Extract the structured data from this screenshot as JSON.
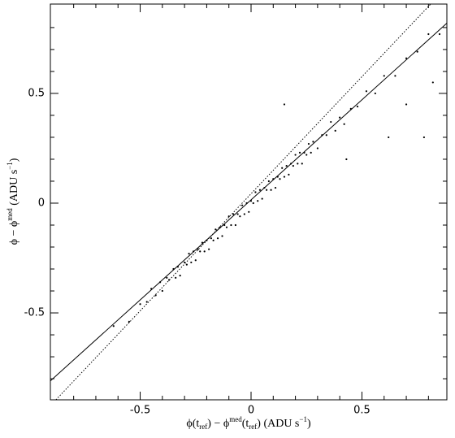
{
  "chart_data": {
    "type": "scatter",
    "xlim": [
      -0.905,
      0.883
    ],
    "ylim": [
      -0.896,
      0.907
    ],
    "xticks": [
      -0.5,
      0,
      0.5
    ],
    "yticks": [
      -0.5,
      0,
      0.5
    ],
    "x_minor_ticks": [
      -0.8,
      -0.7,
      -0.6,
      -0.4,
      -0.3,
      -0.2,
      -0.1,
      0.1,
      0.2,
      0.3,
      0.4,
      0.6,
      0.7,
      0.8
    ],
    "y_minor_ticks": [
      -0.8,
      -0.7,
      -0.6,
      -0.4,
      -0.3,
      -0.2,
      -0.1,
      0.1,
      0.2,
      0.3,
      0.4,
      0.6,
      0.7,
      0.8
    ],
    "xlabel": [
      "ϕ(t",
      "ref",
      ") − ϕ",
      "med",
      "(t",
      "ref",
      ") (ADU s",
      "−1",
      ")"
    ],
    "xlabel_shift": [
      "base",
      "sub",
      "base",
      "sup",
      "base",
      "sub",
      "base",
      "sup",
      "base"
    ],
    "ylabel": [
      "ϕ − ϕ",
      "med",
      " (ADU s",
      "−1",
      ")"
    ],
    "ylabel_shift": [
      "base",
      "sup",
      "base",
      "sup",
      "base"
    ],
    "color": "#000000",
    "points": {
      "x": [
        -0.62,
        -0.55,
        -0.5,
        -0.47,
        -0.45,
        -0.43,
        -0.41,
        -0.4,
        -0.38,
        -0.37,
        -0.35,
        -0.34,
        -0.33,
        -0.32,
        -0.3,
        -0.29,
        -0.28,
        -0.27,
        -0.26,
        -0.25,
        -0.24,
        -0.23,
        -0.22,
        -0.21,
        -0.2,
        -0.19,
        -0.18,
        -0.17,
        -0.16,
        -0.15,
        -0.14,
        -0.13,
        -0.12,
        -0.11,
        -0.1,
        -0.09,
        -0.08,
        -0.07,
        -0.06,
        -0.05,
        -0.04,
        -0.03,
        -0.02,
        -0.01,
        0,
        0.01,
        0.02,
        0.03,
        0.04,
        0.05,
        0.06,
        0.07,
        0.08,
        0.09,
        0.1,
        0.11,
        0.12,
        0.13,
        0.14,
        0.15,
        0.16,
        0.17,
        0.18,
        0.19,
        0.2,
        0.21,
        0.22,
        0.23,
        0.24,
        0.25,
        0.26,
        0.27,
        0.28,
        0.3,
        0.32,
        0.34,
        0.36,
        0.38,
        0.4,
        0.42,
        0.45,
        0.48,
        0.52,
        0.56,
        0.6,
        0.65,
        0.7,
        0.75,
        0.8,
        0.85,
        0.62,
        0.7,
        0.78,
        0.15,
        0.43,
        0.82
      ],
      "y": [
        -0.56,
        -0.54,
        -0.46,
        -0.45,
        -0.39,
        -0.42,
        -0.36,
        -0.4,
        -0.34,
        -0.35,
        -0.3,
        -0.34,
        -0.29,
        -0.33,
        -0.27,
        -0.28,
        -0.23,
        -0.27,
        -0.22,
        -0.26,
        -0.21,
        -0.22,
        -0.18,
        -0.22,
        -0.17,
        -0.21,
        -0.16,
        -0.17,
        -0.12,
        -0.16,
        -0.11,
        -0.15,
        -0.1,
        -0.11,
        -0.06,
        -0.1,
        -0.05,
        -0.1,
        -0.05,
        -0.06,
        -0.01,
        -0.05,
        0,
        -0.04,
        0.01,
        0,
        0.05,
        0.01,
        0.06,
        0.02,
        0.07,
        0.06,
        0.1,
        0.06,
        0.11,
        0.07,
        0.12,
        0.11,
        0.16,
        0.12,
        0.17,
        0.13,
        0.18,
        0.17,
        0.22,
        0.18,
        0.23,
        0.18,
        0.23,
        0.22,
        0.27,
        0.23,
        0.28,
        0.25,
        0.31,
        0.31,
        0.37,
        0.33,
        0.39,
        0.36,
        0.43,
        0.44,
        0.51,
        0.5,
        0.58,
        0.58,
        0.66,
        0.69,
        0.77,
        0.77,
        0.3,
        0.45,
        0.3,
        0.45,
        0.2,
        0.55
      ]
    },
    "lines": [
      {
        "style": "solid",
        "x": [
          -0.905,
          0.883
        ],
        "values": [
          -0.81,
          0.82
        ]
      },
      {
        "style": "dotted",
        "x": [
          -0.88,
          0.81
        ],
        "values": [
          -0.896,
          0.907
        ]
      }
    ]
  }
}
